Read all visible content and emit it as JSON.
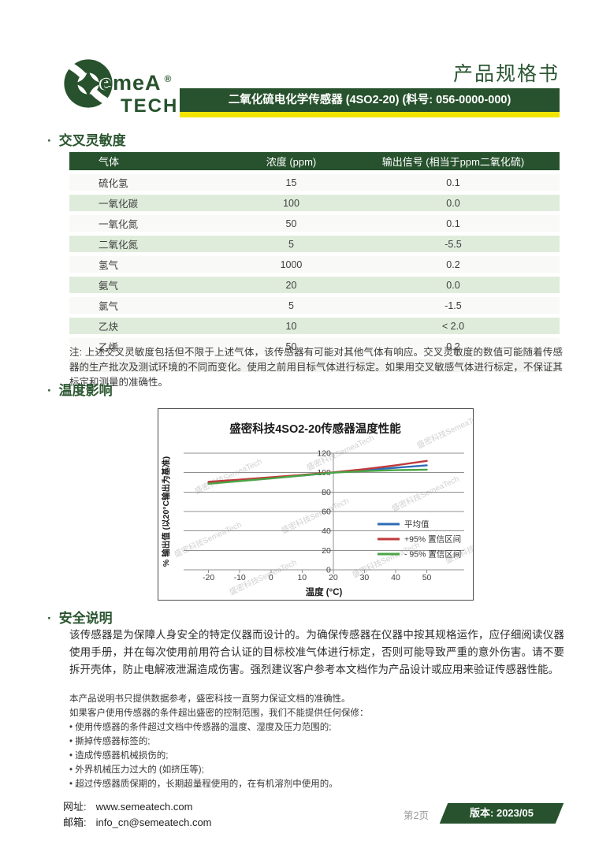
{
  "header": {
    "doc_title": "产品规格书",
    "product_bar": "二氧化硫电化学传感器 (4SO2-20) (料号: 056-0000-000)",
    "logo": {
      "line1": "emeA",
      "line2": "TECH",
      "registered": "®"
    }
  },
  "sections": {
    "cross_sensitivity": {
      "heading": "交叉灵敏度",
      "columns": [
        "气体",
        "浓度 (ppm)",
        "输出信号 (相当于ppm二氧化硫)"
      ],
      "rows": [
        [
          "硫化氢",
          "15",
          "0.1"
        ],
        [
          "一氧化碳",
          "100",
          "0.0"
        ],
        [
          "一氧化氮",
          "50",
          "0.1"
        ],
        [
          "二氧化氮",
          "5",
          "-5.5"
        ],
        [
          "氢气",
          "1000",
          "0.2"
        ],
        [
          "氨气",
          "20",
          "0.0"
        ],
        [
          "氯气",
          "5",
          "-1.5"
        ],
        [
          "乙炔",
          "10",
          "< 2.0"
        ],
        [
          "乙烯",
          "50",
          "0.2"
        ]
      ],
      "note": "注: 上述交叉灵敏度包括但不限于上述气体，该传感器有可能对其他气体有响应。交叉灵敏度的数值可能随着传感器的生产批次及测试环境的不同而变化。使用之前用目标气体进行标定。如果用交叉敏感气体进行标定，不保证其标定和测量的准确性。"
    },
    "temperature": {
      "heading": "温度影响"
    },
    "safety": {
      "heading": "安全说明",
      "paragraph": "该传感器是为保障人身安全的特定仪器而设计的。为确保传感器在仪器中按其规格运作，应仔细阅读仪器使用手册，并在每次使用前用符合认证的目标校准气体进行标定，否则可能导致严重的意外伤害。请不要拆开壳体，防止电解液泄漏造成伤害。强烈建议客户参考本文档作为产品设计或应用来验证传感器性能。",
      "disclaimer": [
        "本产品说明书只提供数据参考，盛密科技一直努力保证文档的准确性。",
        "如果客户使用传感器的条件超出盛密的控制范围，我们不能提供任何保修：",
        "• 使用传感器的条件超过文档中传感器的温度、湿度及压力范围的;",
        "• 撕掉传感器标签的;",
        "• 造成传感器机械损伤的;",
        "• 外界机械压力过大的 (如挤压等);",
        "• 超过传感器质保期的，长期超量程使用的，在有机溶剂中使用的。"
      ]
    }
  },
  "chart_data": {
    "type": "line",
    "title": "盛密科技4SO2-20传感器温度性能",
    "xlabel": "温度 (°C)",
    "ylabel": "% 输出值 (以20°C输出为基准)",
    "x": [
      -20,
      -10,
      0,
      10,
      20,
      30,
      40,
      50
    ],
    "x_ticks": [
      -20,
      -10,
      0,
      10,
      20,
      30,
      40,
      50
    ],
    "y_ticks": [
      0,
      20,
      40,
      60,
      80,
      100,
      120
    ],
    "xlim": [
      -28,
      62
    ],
    "ylim": [
      0,
      120
    ],
    "axis_cross_x": 20,
    "grid": "horizontal",
    "legend_position": "inside-right",
    "series": [
      {
        "name": "平均值",
        "color": "#2e6db6",
        "values": [
          89.5,
          92.0,
          94.5,
          97.0,
          100.0,
          102.5,
          105.0,
          107.5
        ]
      },
      {
        "name": "+95% 置信区间",
        "color": "#c0393b",
        "values": [
          90.5,
          92.8,
          95.2,
          97.6,
          100.3,
          103.5,
          107.5,
          112.0
        ]
      },
      {
        "name": "- 95% 置信区间",
        "color": "#4ba546",
        "values": [
          88.5,
          91.3,
          94.0,
          97.0,
          100.0,
          101.5,
          102.5,
          103.0
        ]
      }
    ],
    "watermark": "盛密科技SemeaTech"
  },
  "footer": {
    "website_label": "网址:",
    "website": "www.semeatech.com",
    "email_label": "邮箱:",
    "email": "info_cn@semeatech.com",
    "page": "第2页",
    "version": "版本: 2023/05"
  },
  "colors": {
    "brand_green": "#27522d",
    "accent_yellow": "#f1e400",
    "row_green": "#dfecdb",
    "series_blue": "#2e6db6",
    "series_red": "#c0393b",
    "series_green": "#4ba546"
  }
}
